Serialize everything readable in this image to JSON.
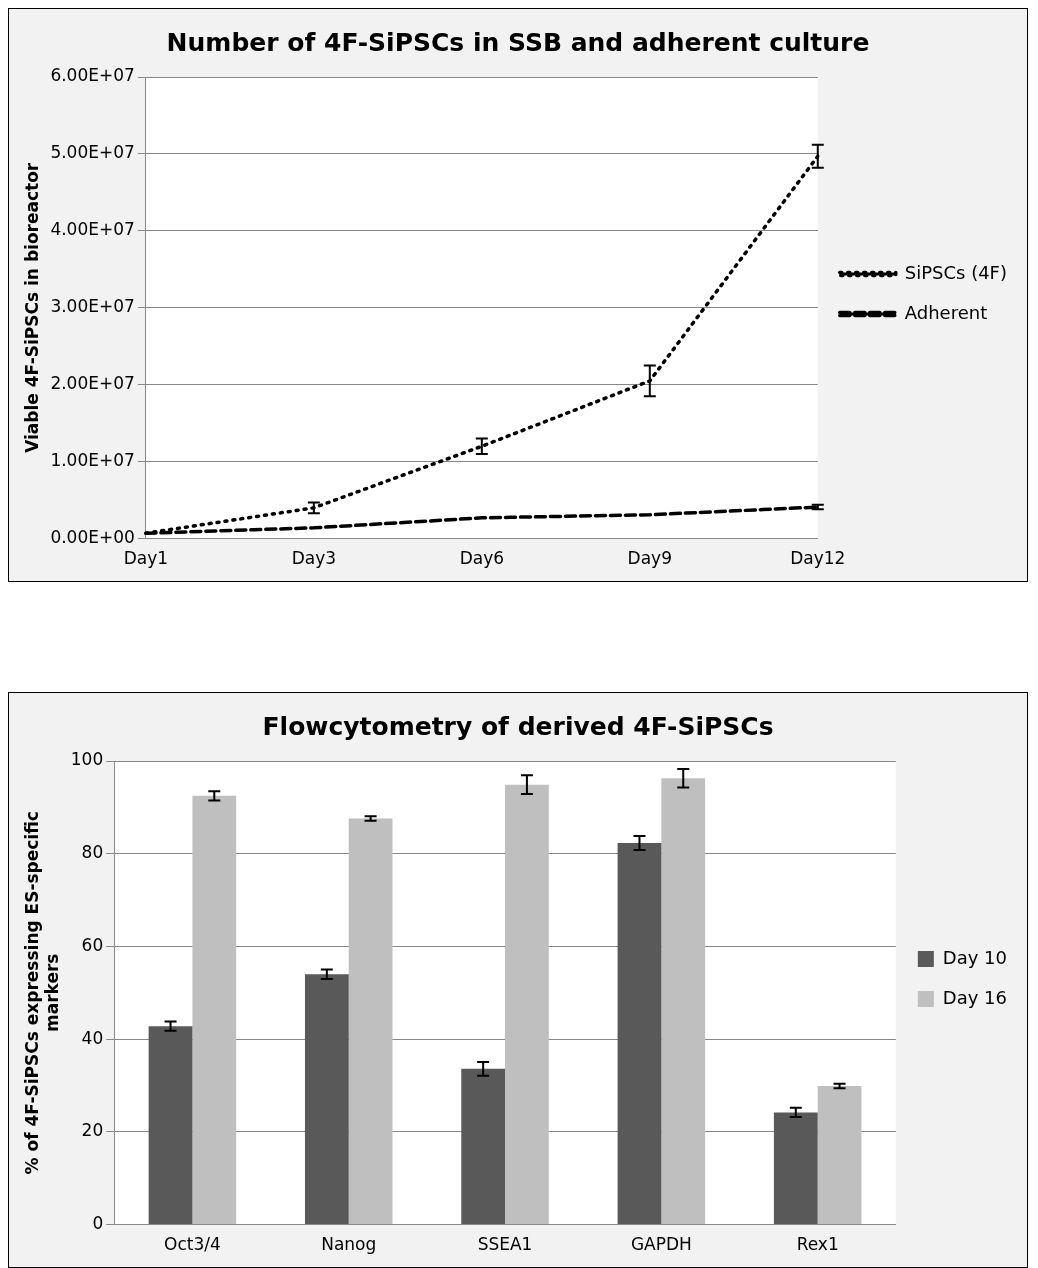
{
  "chart_data": [
    {
      "type": "line",
      "title": "Number of 4F-SiPSCs in SSB and adherent culture",
      "ylabel": "Viable 4F-SiPSCs in bioreactor",
      "categories": [
        "Day1",
        "Day3",
        "Day6",
        "Day9",
        "Day12"
      ],
      "series": [
        {
          "name": "SiPSCs (4F)",
          "color": "#000000",
          "line_style": "dotted",
          "values": [
            700000,
            4000000,
            12000000,
            20500000,
            49700000
          ],
          "errors": [
            null,
            700000,
            1000000,
            2000000,
            1500000
          ]
        },
        {
          "name": "Adherent",
          "color": "#000000",
          "line_style": "dashed",
          "values": [
            700000,
            1400000,
            2700000,
            3100000,
            4100000
          ],
          "errors": [
            null,
            null,
            null,
            null,
            300000
          ]
        }
      ],
      "ylim": [
        0,
        60000000
      ],
      "yticks": [
        {
          "value": 0,
          "label": "0.00E+00"
        },
        {
          "value": 10000000,
          "label": "1.00E+07"
        },
        {
          "value": 20000000,
          "label": "2.00E+07"
        },
        {
          "value": 30000000,
          "label": "3.00E+07"
        },
        {
          "value": 40000000,
          "label": "4.00E+07"
        },
        {
          "value": 50000000,
          "label": "5.00E+07"
        },
        {
          "value": 60000000,
          "label": "6.00E+07"
        }
      ],
      "grid": "y",
      "legend": "right",
      "marker": "none"
    },
    {
      "type": "bar",
      "title": "Flowcytometry of derived 4F-SiPSCs",
      "ylabel": "% of 4F-SiPSCs expressing ES-specific markers",
      "categories": [
        "Oct3/4",
        "Nanog",
        "SSEA1",
        "GAPDH",
        "Rex1"
      ],
      "series": [
        {
          "name": "Day 10",
          "color": "#595959",
          "values": [
            42.8,
            54,
            33.6,
            82.3,
            24.2
          ],
          "errors": [
            1,
            1,
            1.5,
            1.5,
            1
          ]
        },
        {
          "name": "Day 16",
          "color": "#bfbfbf",
          "values": [
            92.5,
            87.6,
            94.9,
            96.3,
            29.9
          ],
          "errors": [
            1,
            0.5,
            2,
            2,
            0.5
          ]
        }
      ],
      "ylim": [
        0,
        100
      ],
      "yticks": [
        0,
        20,
        40,
        60,
        80,
        100
      ],
      "grid": "y",
      "legend": "right"
    }
  ]
}
